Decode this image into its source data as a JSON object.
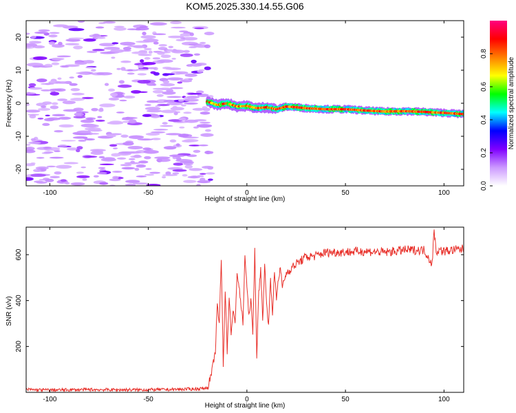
{
  "figure": {
    "title": "KOM5.2025.330.14.55.G06"
  },
  "chart_data": [
    {
      "type": "heatmap",
      "xlabel": "Height of straight line (km)",
      "ylabel": "Frequency (Hz)",
      "xlim": [
        -112,
        110
      ],
      "ylim": [
        -25,
        25
      ],
      "xticks": [
        -100,
        -50,
        0,
        50,
        100
      ],
      "yticks": [
        -20,
        -10,
        0,
        10,
        20
      ],
      "grid": false,
      "colorbar": {
        "label": "Normalized spectral amplitude",
        "range": [
          0,
          1
        ],
        "ticks": [
          0.0,
          0.2,
          0.4,
          0.6,
          0.8
        ],
        "colors": [
          "#ffffff",
          "#cc99ff",
          "#7f00ff",
          "#0000ff",
          "#00ffff",
          "#00ff00",
          "#ffff00",
          "#ff7f00",
          "#ff0000",
          "#ff0080"
        ]
      },
      "ridge": {
        "x": [
          -20,
          -15,
          -10,
          -5,
          0,
          5,
          10,
          15,
          20,
          25,
          30,
          40,
          50,
          60,
          70,
          80,
          90,
          95,
          100,
          105,
          110
        ],
        "y": [
          0.5,
          -0.5,
          0,
          -1,
          -0.8,
          -1.5,
          -1.2,
          -1.8,
          -1.0,
          -1.2,
          -1.5,
          -1.8,
          -1.8,
          -2.2,
          -2.5,
          -2.4,
          -2.6,
          -2.8,
          -2.9,
          -3.1,
          -3.3
        ]
      }
    },
    {
      "type": "line",
      "xlabel": "Height of straight line (km)",
      "ylabel": "SNR (v/v)",
      "xlim": [
        -112,
        110
      ],
      "ylim": [
        0,
        720
      ],
      "xticks": [
        -100,
        -50,
        0,
        50,
        100
      ],
      "yticks": [
        200,
        400,
        600
      ],
      "grid": false,
      "color": "#e8302a",
      "series": [
        {
          "x": [
            -112,
            -100,
            -80,
            -60,
            -40,
            -25,
            -20,
            -18,
            -16,
            -15,
            -14,
            -13,
            -12,
            -11,
            -10,
            -9,
            -8,
            -7,
            -6,
            -5,
            -4,
            -3,
            -2,
            -1,
            0,
            1,
            2,
            3,
            4,
            5,
            6,
            7,
            8,
            9,
            10,
            11,
            12,
            13,
            14,
            15,
            16,
            17,
            18,
            20,
            25,
            30,
            35,
            40,
            50,
            60,
            70,
            80,
            90,
            94,
            95,
            96,
            97,
            100,
            105,
            110
          ],
          "y": [
            12,
            10,
            12,
            11,
            12,
            15,
            20,
            80,
            180,
            380,
            300,
            580,
            120,
            450,
            180,
            420,
            260,
            350,
            300,
            520,
            460,
            380,
            300,
            600,
            460,
            330,
            410,
            250,
            620,
            160,
            430,
            540,
            310,
            560,
            380,
            300,
            490,
            350,
            520,
            410,
            500,
            540,
            460,
            520,
            560,
            590,
            595,
            610,
            612,
            615,
            610,
            620,
            620,
            560,
            710,
            610,
            620,
            615,
            620,
            625
          ]
        }
      ]
    }
  ]
}
